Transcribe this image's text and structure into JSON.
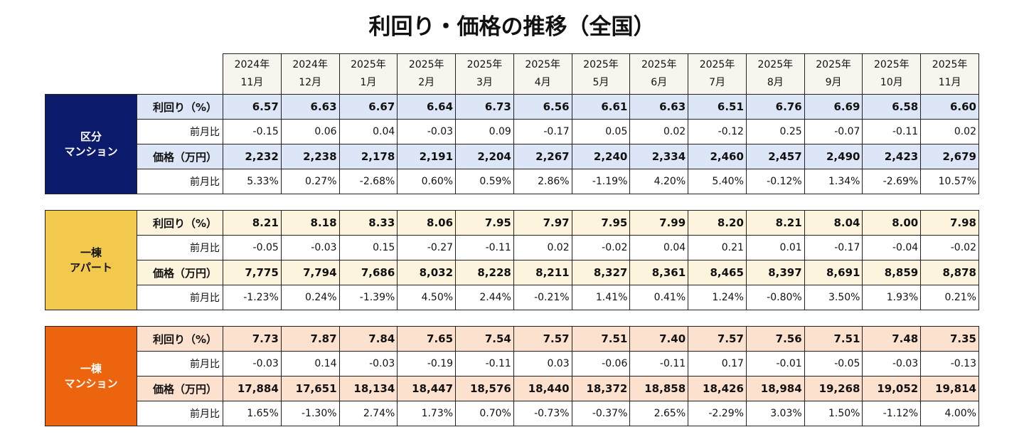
{
  "title": "利回り・価格の推移（全国）",
  "columns": [
    {
      "year": "2024年",
      "month": "11月"
    },
    {
      "year": "2024年",
      "month": "12月"
    },
    {
      "year": "2025年",
      "month": "1月"
    },
    {
      "year": "2025年",
      "month": "2月"
    },
    {
      "year": "2025年",
      "month": "3月"
    },
    {
      "year": "2025年",
      "month": "4月"
    },
    {
      "year": "2025年",
      "month": "5月"
    },
    {
      "year": "2025年",
      "month": "6月"
    },
    {
      "year": "2025年",
      "month": "7月"
    },
    {
      "year": "2025年",
      "month": "8月"
    },
    {
      "year": "2025年",
      "month": "9月"
    },
    {
      "year": "2025年",
      "month": "10月"
    },
    {
      "year": "2025年",
      "month": "11月"
    }
  ],
  "sections": [
    {
      "label": [
        "区分",
        "マンション"
      ],
      "rows": [
        {
          "label": "利回り（%）",
          "values": [
            "6.57",
            "6.63",
            "6.67",
            "6.64",
            "6.73",
            "6.56",
            "6.61",
            "6.63",
            "6.51",
            "6.76",
            "6.69",
            "6.58",
            "6.60"
          ]
        },
        {
          "label": "前月比",
          "values": [
            "-0.15",
            "0.06",
            "0.04",
            "-0.03",
            "0.09",
            "-0.17",
            "0.05",
            "0.02",
            "-0.12",
            "0.25",
            "-0.07",
            "-0.11",
            "0.02"
          ]
        },
        {
          "label": "価格（万円）",
          "values": [
            "2,232",
            "2,238",
            "2,178",
            "2,191",
            "2,204",
            "2,267",
            "2,240",
            "2,334",
            "2,460",
            "2,457",
            "2,490",
            "2,423",
            "2,679"
          ]
        },
        {
          "label": "前月比",
          "values": [
            "5.33%",
            "0.27%",
            "-2.68%",
            "0.60%",
            "0.59%",
            "2.86%",
            "-1.19%",
            "4.20%",
            "5.40%",
            "-0.12%",
            "1.34%",
            "-2.69%",
            "10.57%"
          ]
        }
      ]
    },
    {
      "label": [
        "一棟",
        "アパート"
      ],
      "rows": [
        {
          "label": "利回り（%）",
          "values": [
            "8.21",
            "8.18",
            "8.33",
            "8.06",
            "7.95",
            "7.97",
            "7.95",
            "7.99",
            "8.20",
            "8.21",
            "8.04",
            "8.00",
            "7.98"
          ]
        },
        {
          "label": "前月比",
          "values": [
            "-0.05",
            "-0.03",
            "0.15",
            "-0.27",
            "-0.11",
            "0.02",
            "-0.02",
            "0.04",
            "0.21",
            "0.01",
            "-0.17",
            "-0.04",
            "-0.02"
          ]
        },
        {
          "label": "価格（万円）",
          "values": [
            "7,775",
            "7,794",
            "7,686",
            "8,032",
            "8,228",
            "8,211",
            "8,327",
            "8,361",
            "8,465",
            "8,397",
            "8,691",
            "8,859",
            "8,878"
          ]
        },
        {
          "label": "前月比",
          "values": [
            "-1.23%",
            "0.24%",
            "-1.39%",
            "4.50%",
            "2.44%",
            "-0.21%",
            "1.41%",
            "0.41%",
            "1.24%",
            "-0.80%",
            "3.50%",
            "1.93%",
            "0.21%"
          ]
        }
      ]
    },
    {
      "label": [
        "一棟",
        "マンション"
      ],
      "rows": [
        {
          "label": "利回り（%）",
          "values": [
            "7.73",
            "7.87",
            "7.84",
            "7.65",
            "7.54",
            "7.57",
            "7.51",
            "7.40",
            "7.57",
            "7.56",
            "7.51",
            "7.48",
            "7.35"
          ]
        },
        {
          "label": "前月比",
          "values": [
            "-0.03",
            "0.14",
            "-0.03",
            "-0.19",
            "-0.11",
            "0.03",
            "-0.06",
            "-0.11",
            "0.17",
            "-0.01",
            "-0.05",
            "-0.03",
            "-0.13"
          ]
        },
        {
          "label": "価格（万円）",
          "values": [
            "17,884",
            "17,651",
            "18,134",
            "18,447",
            "18,576",
            "18,440",
            "18,372",
            "18,858",
            "18,426",
            "18,984",
            "19,268",
            "19,052",
            "19,814"
          ]
        },
        {
          "label": "前月比",
          "values": [
            "1.65%",
            "-1.30%",
            "2.74%",
            "1.73%",
            "0.70%",
            "-0.73%",
            "-0.37%",
            "2.65%",
            "-2.29%",
            "3.03%",
            "1.50%",
            "-1.12%",
            "4.00%"
          ]
        }
      ]
    }
  ]
}
